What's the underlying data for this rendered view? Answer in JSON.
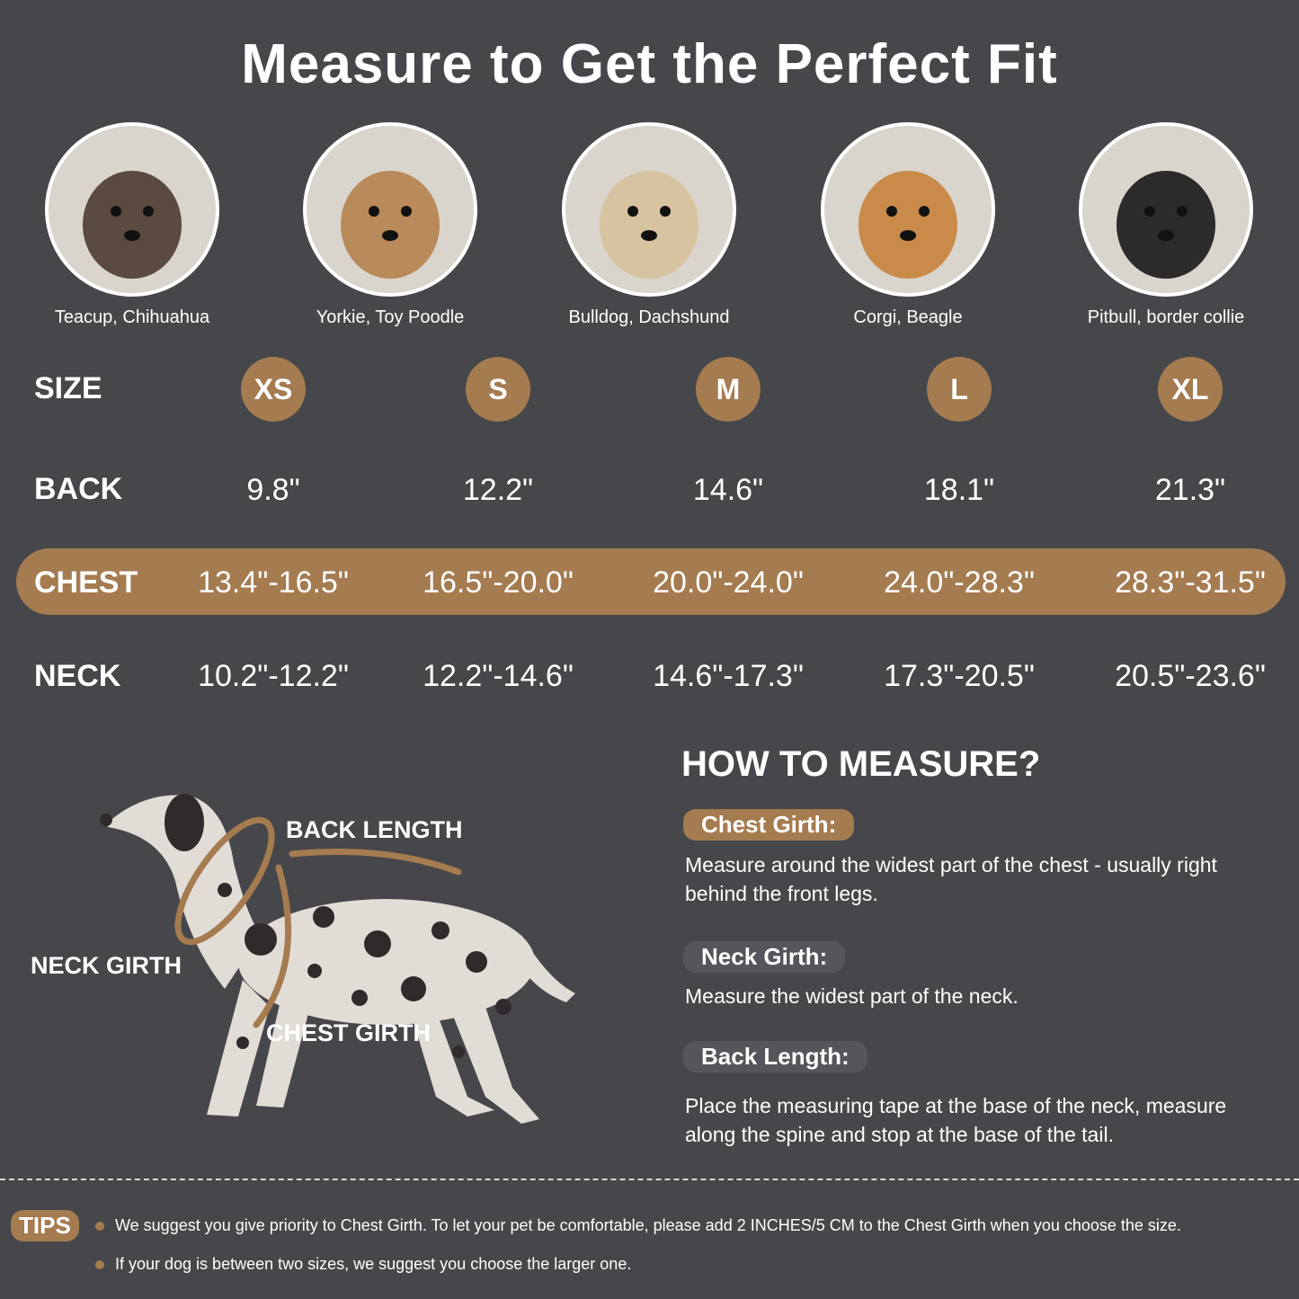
{
  "title": "Measure to Get the Perfect Fit",
  "breeds": [
    "Teacup, Chihuahua",
    "Yorkie, Toy Poodle",
    "Bulldog, Dachshund",
    "Corgi, Beagle",
    "Pitbull, border collie"
  ],
  "photo_icons": [
    "chihuahua-photo",
    "yorkie-photo",
    "pug-photo",
    "beagle-photo",
    "border-collie-photo"
  ],
  "table": {
    "labels": {
      "size": "SIZE",
      "back": "BACK",
      "chest": "CHEST",
      "neck": "NECK"
    },
    "sizes": [
      "XS",
      "S",
      "M",
      "L",
      "XL"
    ],
    "back": [
      "9.8\"",
      "12.2\"",
      "14.6\"",
      "18.1\"",
      "21.3\""
    ],
    "chest": [
      "13.4\"-16.5\"",
      "16.5\"-20.0\"",
      "20.0\"-24.0\"",
      "24.0\"-28.3\"",
      "28.3\"-31.5\""
    ],
    "neck": [
      "10.2\"-12.2\"",
      "12.2\"-14.6\"",
      "14.6\"-17.3\"",
      "17.3\"-20.5\"",
      "20.5\"-23.6\""
    ]
  },
  "diagram": {
    "back_length": "BACK LENGTH",
    "neck_girth": "NECK GIRTH",
    "chest_girth": "CHEST GIRTH"
  },
  "how_to": {
    "title": "HOW TO MEASURE?",
    "chest": {
      "label": "Chest Girth:",
      "text": "Measure around the widest part of the chest - usually right behind the front legs."
    },
    "neck": {
      "label": "Neck Girth:",
      "text": "Measure the widest part of the neck."
    },
    "back": {
      "label": "Back Length:",
      "text": "Place the measuring tape at the base of the neck, measure along the spine and stop at the base of the tail."
    }
  },
  "tips": {
    "label": "TIPS",
    "items": [
      "We suggest you give priority to Chest Girth. To let your pet be comfortable, please add 2 INCHES/5 CM to the Chest Girth when you choose the size.",
      "If your dog is between two sizes, we suggest you choose the larger one."
    ]
  },
  "colors": {
    "background": "#46474b",
    "accent": "#a57b50"
  }
}
